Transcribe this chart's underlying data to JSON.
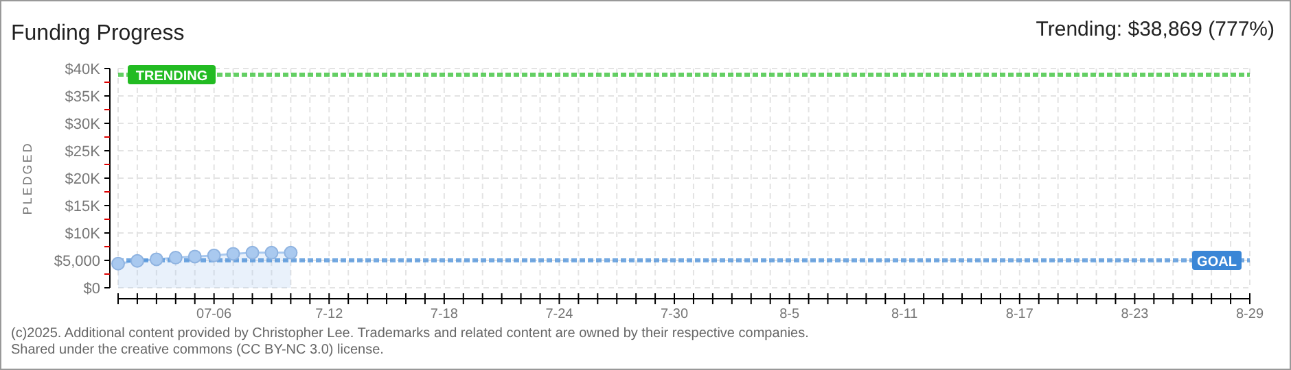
{
  "chart_data": {
    "type": "area",
    "title": "Funding Progress",
    "subtitle": "Trending: $38,869 (777%)",
    "ylabel": "PLEDGED",
    "x": [
      "--07-01",
      "--07-02",
      "--07-03",
      "--07-04",
      "--07-05",
      "--07-06",
      "--07-07",
      "--07-08",
      "--07-09",
      "--07-10"
    ],
    "series": [
      {
        "color": "#a9c9ef",
        "values": [
          4400,
          4900,
          5200,
          5500,
          5700,
          5900,
          6200,
          6400,
          6400,
          6400
        ]
      }
    ],
    "marker": "circle",
    "grid": true,
    "ylim": [
      0,
      40000
    ],
    "yticks": [
      {
        "value": 0,
        "label": "$0"
      },
      {
        "value": 2500,
        "label": null
      },
      {
        "value": 5000,
        "label": "$5,000"
      },
      {
        "value": 7500,
        "label": null
      },
      {
        "value": 10000,
        "label": "$10K"
      },
      {
        "value": 12500,
        "label": null
      },
      {
        "value": 15000,
        "label": "$15K"
      },
      {
        "value": 17500,
        "label": null
      },
      {
        "value": 20000,
        "label": "$20K"
      },
      {
        "value": 22500,
        "label": null
      },
      {
        "value": 25000,
        "label": "$25K"
      },
      {
        "value": 27500,
        "label": null
      },
      {
        "value": 30000,
        "label": "$30K"
      },
      {
        "value": 32500,
        "label": null
      },
      {
        "value": 35000,
        "label": "$35K"
      },
      {
        "value": 37500,
        "label": null
      },
      {
        "value": 40000,
        "label": "$40K"
      }
    ],
    "xlim": [
      "--07-01",
      "--08-29"
    ],
    "xticks": [
      {
        "value": "--07-01",
        "label": null
      },
      {
        "value": "--07-02",
        "label": null
      },
      {
        "value": "--07-03",
        "label": null
      },
      {
        "value": "--07-04",
        "label": null
      },
      {
        "value": "--07-05",
        "label": null
      },
      {
        "value": "--07-06",
        "label": "07-06"
      },
      {
        "value": "--07-07",
        "label": null
      },
      {
        "value": "--07-08",
        "label": null
      },
      {
        "value": "--07-09",
        "label": null
      },
      {
        "value": "--07-10",
        "label": null
      },
      {
        "value": "--07-11",
        "label": null
      },
      {
        "value": "--07-12",
        "label": "7-12"
      },
      {
        "value": "--07-13",
        "label": null
      },
      {
        "value": "--07-14",
        "label": null
      },
      {
        "value": "--07-15",
        "label": null
      },
      {
        "value": "--07-16",
        "label": null
      },
      {
        "value": "--07-17",
        "label": null
      },
      {
        "value": "--07-18",
        "label": "7-18"
      },
      {
        "value": "--07-19",
        "label": null
      },
      {
        "value": "--07-20",
        "label": null
      },
      {
        "value": "--07-21",
        "label": null
      },
      {
        "value": "--07-22",
        "label": null
      },
      {
        "value": "--07-23",
        "label": null
      },
      {
        "value": "--07-24",
        "label": "7-24"
      },
      {
        "value": "--07-25",
        "label": null
      },
      {
        "value": "--07-26",
        "label": null
      },
      {
        "value": "--07-27",
        "label": null
      },
      {
        "value": "--07-28",
        "label": null
      },
      {
        "value": "--07-29",
        "label": null
      },
      {
        "value": "--07-30",
        "label": "7-30"
      },
      {
        "value": "--07-31",
        "label": null
      },
      {
        "value": "--08-01",
        "label": null
      },
      {
        "value": "--08-02",
        "label": null
      },
      {
        "value": "--08-03",
        "label": null
      },
      {
        "value": "--08-04",
        "label": null
      },
      {
        "value": "--08-05",
        "label": "8-5"
      },
      {
        "value": "--08-06",
        "label": null
      },
      {
        "value": "--08-07",
        "label": null
      },
      {
        "value": "--08-08",
        "label": null
      },
      {
        "value": "--08-09",
        "label": null
      },
      {
        "value": "--08-10",
        "label": null
      },
      {
        "value": "--08-11",
        "label": "8-11"
      },
      {
        "value": "--08-12",
        "label": null
      },
      {
        "value": "--08-13",
        "label": null
      },
      {
        "value": "--08-14",
        "label": null
      },
      {
        "value": "--08-15",
        "label": null
      },
      {
        "value": "--08-16",
        "label": null
      },
      {
        "value": "--08-17",
        "label": "8-17"
      },
      {
        "value": "--08-18",
        "label": null
      },
      {
        "value": "--08-19",
        "label": null
      },
      {
        "value": "--08-20",
        "label": null
      },
      {
        "value": "--08-21",
        "label": null
      },
      {
        "value": "--08-22",
        "label": null
      },
      {
        "value": "--08-23",
        "label": "8-23"
      },
      {
        "value": "--08-24",
        "label": null
      },
      {
        "value": "--08-25",
        "label": null
      },
      {
        "value": "--08-26",
        "label": null
      },
      {
        "value": "--08-27",
        "label": null
      },
      {
        "value": "--08-28",
        "label": null
      },
      {
        "value": "--08-29",
        "label": "8-29"
      }
    ],
    "ref_lines": [
      {
        "axis": "y",
        "value": 38869,
        "label": "TRENDING",
        "color": "#22bb22",
        "line_style": "dashed"
      },
      {
        "axis": "y",
        "value": 5000,
        "label": "GOAL",
        "color": "#3a86d6",
        "line_style": "dashed"
      }
    ],
    "annotations": [
      "(c)2025. Additional content provided by Christopher Lee. Trademarks and related content are owned by their respective companies.",
      "Shared under the creative commons (CC BY-NC 3.0) license."
    ]
  }
}
